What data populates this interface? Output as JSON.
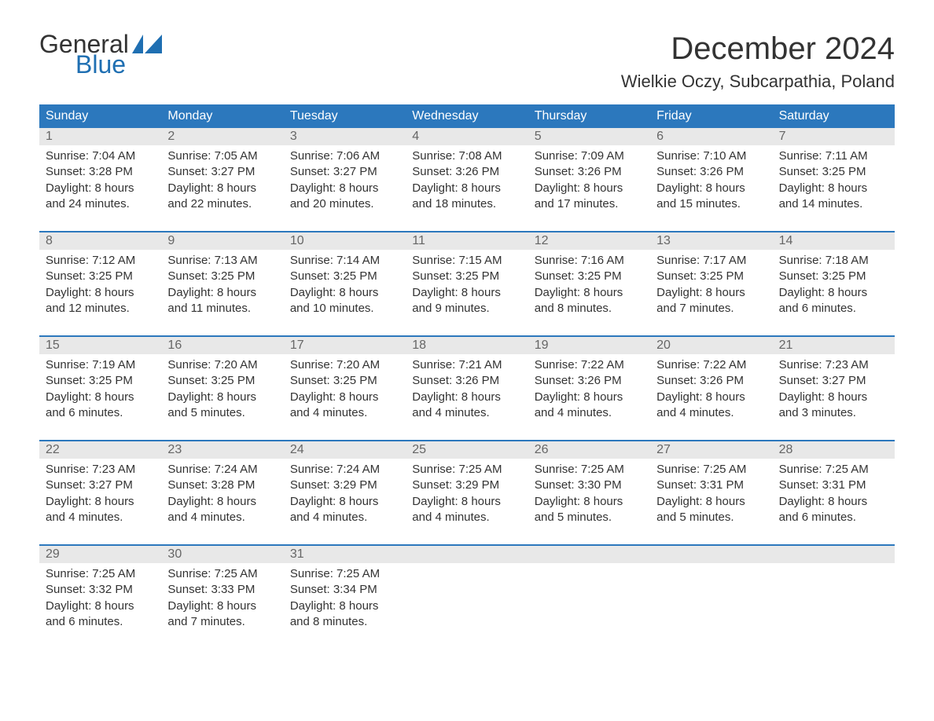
{
  "logo": {
    "text1": "General",
    "text2": "Blue",
    "flag_color": "#1f6fb2"
  },
  "title": "December 2024",
  "location": "Wielkie Oczy, Subcarpathia, Poland",
  "colors": {
    "header_bg": "#2c78bd",
    "header_text": "#ffffff",
    "daynum_bg": "#e8e8e8",
    "daynum_text": "#666666",
    "body_text": "#333333",
    "rule": "#2c78bd",
    "logo_blue": "#1f6fb2",
    "background": "#ffffff"
  },
  "dow": [
    "Sunday",
    "Monday",
    "Tuesday",
    "Wednesday",
    "Thursday",
    "Friday",
    "Saturday"
  ],
  "weeks": [
    [
      {
        "n": "1",
        "sr": "7:04 AM",
        "ss": "3:28 PM",
        "dl": "8 hours and 24 minutes."
      },
      {
        "n": "2",
        "sr": "7:05 AM",
        "ss": "3:27 PM",
        "dl": "8 hours and 22 minutes."
      },
      {
        "n": "3",
        "sr": "7:06 AM",
        "ss": "3:27 PM",
        "dl": "8 hours and 20 minutes."
      },
      {
        "n": "4",
        "sr": "7:08 AM",
        "ss": "3:26 PM",
        "dl": "8 hours and 18 minutes."
      },
      {
        "n": "5",
        "sr": "7:09 AM",
        "ss": "3:26 PM",
        "dl": "8 hours and 17 minutes."
      },
      {
        "n": "6",
        "sr": "7:10 AM",
        "ss": "3:26 PM",
        "dl": "8 hours and 15 minutes."
      },
      {
        "n": "7",
        "sr": "7:11 AM",
        "ss": "3:25 PM",
        "dl": "8 hours and 14 minutes."
      }
    ],
    [
      {
        "n": "8",
        "sr": "7:12 AM",
        "ss": "3:25 PM",
        "dl": "8 hours and 12 minutes."
      },
      {
        "n": "9",
        "sr": "7:13 AM",
        "ss": "3:25 PM",
        "dl": "8 hours and 11 minutes."
      },
      {
        "n": "10",
        "sr": "7:14 AM",
        "ss": "3:25 PM",
        "dl": "8 hours and 10 minutes."
      },
      {
        "n": "11",
        "sr": "7:15 AM",
        "ss": "3:25 PM",
        "dl": "8 hours and 9 minutes."
      },
      {
        "n": "12",
        "sr": "7:16 AM",
        "ss": "3:25 PM",
        "dl": "8 hours and 8 minutes."
      },
      {
        "n": "13",
        "sr": "7:17 AM",
        "ss": "3:25 PM",
        "dl": "8 hours and 7 minutes."
      },
      {
        "n": "14",
        "sr": "7:18 AM",
        "ss": "3:25 PM",
        "dl": "8 hours and 6 minutes."
      }
    ],
    [
      {
        "n": "15",
        "sr": "7:19 AM",
        "ss": "3:25 PM",
        "dl": "8 hours and 6 minutes."
      },
      {
        "n": "16",
        "sr": "7:20 AM",
        "ss": "3:25 PM",
        "dl": "8 hours and 5 minutes."
      },
      {
        "n": "17",
        "sr": "7:20 AM",
        "ss": "3:25 PM",
        "dl": "8 hours and 4 minutes."
      },
      {
        "n": "18",
        "sr": "7:21 AM",
        "ss": "3:26 PM",
        "dl": "8 hours and 4 minutes."
      },
      {
        "n": "19",
        "sr": "7:22 AM",
        "ss": "3:26 PM",
        "dl": "8 hours and 4 minutes."
      },
      {
        "n": "20",
        "sr": "7:22 AM",
        "ss": "3:26 PM",
        "dl": "8 hours and 4 minutes."
      },
      {
        "n": "21",
        "sr": "7:23 AM",
        "ss": "3:27 PM",
        "dl": "8 hours and 3 minutes."
      }
    ],
    [
      {
        "n": "22",
        "sr": "7:23 AM",
        "ss": "3:27 PM",
        "dl": "8 hours and 4 minutes."
      },
      {
        "n": "23",
        "sr": "7:24 AM",
        "ss": "3:28 PM",
        "dl": "8 hours and 4 minutes."
      },
      {
        "n": "24",
        "sr": "7:24 AM",
        "ss": "3:29 PM",
        "dl": "8 hours and 4 minutes."
      },
      {
        "n": "25",
        "sr": "7:25 AM",
        "ss": "3:29 PM",
        "dl": "8 hours and 4 minutes."
      },
      {
        "n": "26",
        "sr": "7:25 AM",
        "ss": "3:30 PM",
        "dl": "8 hours and 5 minutes."
      },
      {
        "n": "27",
        "sr": "7:25 AM",
        "ss": "3:31 PM",
        "dl": "8 hours and 5 minutes."
      },
      {
        "n": "28",
        "sr": "7:25 AM",
        "ss": "3:31 PM",
        "dl": "8 hours and 6 minutes."
      }
    ],
    [
      {
        "n": "29",
        "sr": "7:25 AM",
        "ss": "3:32 PM",
        "dl": "8 hours and 6 minutes."
      },
      {
        "n": "30",
        "sr": "7:25 AM",
        "ss": "3:33 PM",
        "dl": "8 hours and 7 minutes."
      },
      {
        "n": "31",
        "sr": "7:25 AM",
        "ss": "3:34 PM",
        "dl": "8 hours and 8 minutes."
      },
      null,
      null,
      null,
      null
    ]
  ],
  "labels": {
    "sunrise": "Sunrise: ",
    "sunset": "Sunset: ",
    "daylight": "Daylight: "
  }
}
